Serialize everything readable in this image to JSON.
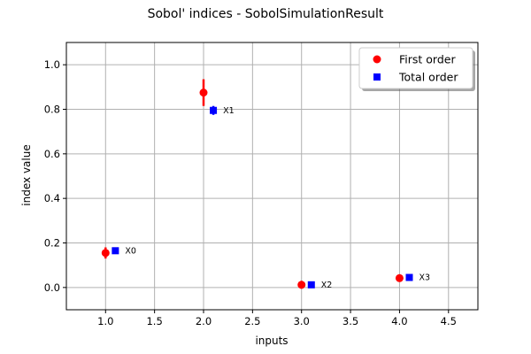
{
  "chart_data": {
    "type": "scatter",
    "title": "Sobol' indices - SobolSimulationResult",
    "xlabel": "inputs",
    "ylabel": "index value",
    "xlim": [
      0.6,
      4.8
    ],
    "ylim": [
      -0.1,
      1.1
    ],
    "xticks": [
      "1.0",
      "1.5",
      "2.0",
      "2.5",
      "3.0",
      "3.5",
      "4.0",
      "4.5"
    ],
    "yticks": [
      "0.0",
      "0.2",
      "0.4",
      "0.6",
      "0.8",
      "1.0"
    ],
    "grid": true,
    "legend_position": "top-right",
    "series": [
      {
        "name": "First order",
        "marker": "circle",
        "color": "#ff0000",
        "points": [
          {
            "x": 1.0,
            "y": 0.155,
            "ylow": 0.13,
            "yhigh": 0.18
          },
          {
            "x": 2.0,
            "y": 0.875,
            "ylow": 0.815,
            "yhigh": 0.935
          },
          {
            "x": 3.0,
            "y": 0.012,
            "ylow": -0.005,
            "yhigh": 0.03
          },
          {
            "x": 4.0,
            "y": 0.042,
            "ylow": 0.028,
            "yhigh": 0.058
          }
        ]
      },
      {
        "name": "Total order",
        "marker": "square",
        "color": "#0000ff",
        "points": [
          {
            "x": 1.1,
            "y": 0.165,
            "ylow": 0.155,
            "yhigh": 0.175
          },
          {
            "x": 2.1,
            "y": 0.795,
            "ylow": 0.775,
            "yhigh": 0.815
          },
          {
            "x": 3.1,
            "y": 0.012,
            "ylow": 0.006,
            "yhigh": 0.018
          },
          {
            "x": 4.1,
            "y": 0.045,
            "ylow": 0.037,
            "yhigh": 0.053
          }
        ]
      }
    ],
    "annotations": [
      {
        "text": "X0",
        "x": 1.1,
        "y": 0.165
      },
      {
        "text": "X1",
        "x": 2.1,
        "y": 0.795
      },
      {
        "text": "X2",
        "x": 3.1,
        "y": 0.012
      },
      {
        "text": "X3",
        "x": 4.1,
        "y": 0.045
      }
    ]
  }
}
